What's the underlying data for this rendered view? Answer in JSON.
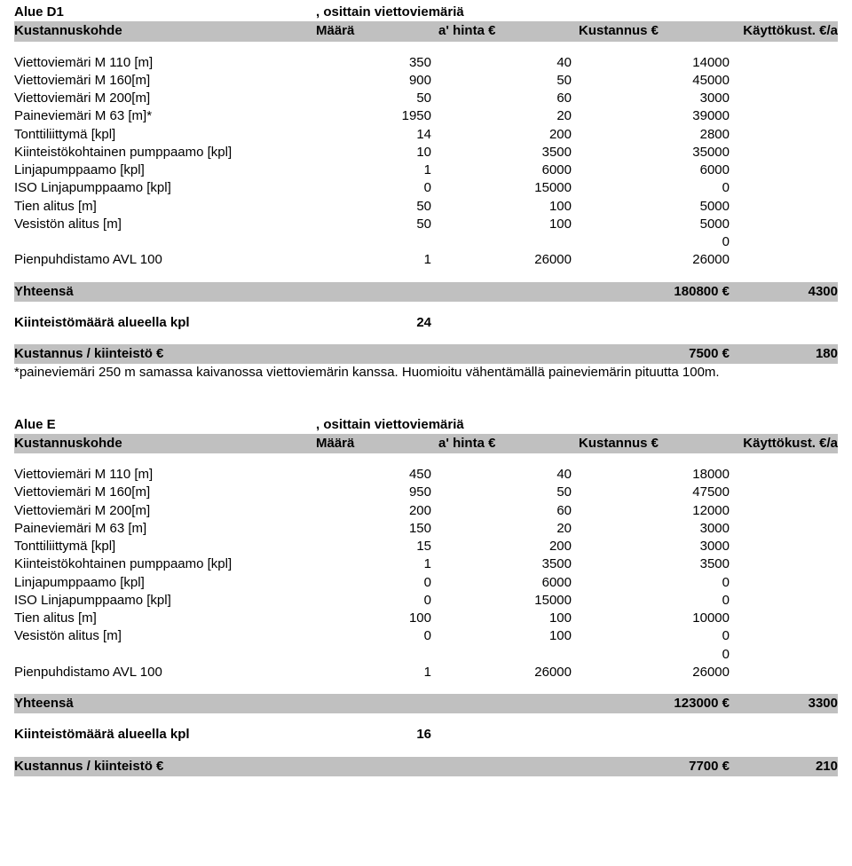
{
  "areaD1": {
    "title_left": "Alue D1",
    "title_right": ", osittain viettoviemäriä",
    "header": {
      "label": "Kustannuskohde",
      "qty": "Määrä",
      "price": "a' hinta €",
      "cost": "Kustannus €",
      "usage": "Käyttökust. €/a"
    },
    "rows": [
      {
        "label": "Viettoviemäri M 110 [m]",
        "q": "350",
        "p": "40",
        "c": "14000"
      },
      {
        "label": "Viettoviemäri M 160[m]",
        "q": "900",
        "p": "50",
        "c": "45000"
      },
      {
        "label": "Viettoviemäri M 200[m]",
        "q": "50",
        "p": "60",
        "c": "3000"
      },
      {
        "label": "Paineviemäri M 63 [m]*",
        "q": "1950",
        "p": "20",
        "c": "39000"
      },
      {
        "label": "Tonttiliittymä [kpl]",
        "q": "14",
        "p": "200",
        "c": "2800"
      },
      {
        "label": "Kiinteistökohtainen pumppaamo [kpl]",
        "q": "10",
        "p": "3500",
        "c": "35000"
      },
      {
        "label": "Linjapumppaamo [kpl]",
        "q": "1",
        "p": "6000",
        "c": "6000"
      },
      {
        "label": "ISO Linjapumppaamo [kpl]",
        "q": "0",
        "p": "15000",
        "c": "0"
      },
      {
        "label": "Tien alitus [m]",
        "q": "50",
        "p": "100",
        "c": "5000"
      },
      {
        "label": "Vesistön alitus [m]",
        "q": "50",
        "p": "100",
        "c": "5000"
      },
      {
        "label": "",
        "q": "",
        "p": "",
        "c": "0"
      },
      {
        "label": "Pienpuhdistamo AVL 100",
        "q": "1",
        "p": "26000",
        "c": "26000"
      }
    ],
    "total": {
      "label": "Yhteensä",
      "cost": "180800 €",
      "usage": "4300"
    },
    "count": {
      "label": "Kiinteistömäärä alueella kpl",
      "value": "24"
    },
    "per": {
      "label": "Kustannus / kiinteistö €",
      "cost": "7500 €",
      "usage": "180"
    },
    "footnote": "*paineviemäri 250 m samassa kaivanossa viettoviemärin kanssa. Huomioitu vähentämällä paineviemärin pituutta 100m."
  },
  "areaE": {
    "title_left": "Alue E",
    "title_right": ", osittain viettoviemäriä",
    "header": {
      "label": "Kustannuskohde",
      "qty": "Määrä",
      "price": "a' hinta €",
      "cost": "Kustannus €",
      "usage": "Käyttökust. €/a"
    },
    "rows": [
      {
        "label": "Viettoviemäri M 110 [m]",
        "q": "450",
        "p": "40",
        "c": "18000"
      },
      {
        "label": "Viettoviemäri M 160[m]",
        "q": "950",
        "p": "50",
        "c": "47500"
      },
      {
        "label": "Viettoviemäri M 200[m]",
        "q": "200",
        "p": "60",
        "c": "12000"
      },
      {
        "label": "Paineviemäri M 63 [m]",
        "q": "150",
        "p": "20",
        "c": "3000"
      },
      {
        "label": "Tonttiliittymä [kpl]",
        "q": "15",
        "p": "200",
        "c": "3000"
      },
      {
        "label": "Kiinteistökohtainen pumppaamo [kpl]",
        "q": "1",
        "p": "3500",
        "c": "3500"
      },
      {
        "label": "Linjapumppaamo [kpl]",
        "q": "0",
        "p": "6000",
        "c": "0"
      },
      {
        "label": "ISO Linjapumppaamo [kpl]",
        "q": "0",
        "p": "15000",
        "c": "0"
      },
      {
        "label": "Tien alitus [m]",
        "q": "100",
        "p": "100",
        "c": "10000"
      },
      {
        "label": "Vesistön alitus [m]",
        "q": "0",
        "p": "100",
        "c": "0"
      },
      {
        "label": "",
        "q": "",
        "p": "",
        "c": "0"
      },
      {
        "label": "Pienpuhdistamo AVL 100",
        "q": "1",
        "p": "26000",
        "c": "26000"
      }
    ],
    "total": {
      "label": "Yhteensä",
      "cost": "123000 €",
      "usage": "3300"
    },
    "count": {
      "label": "Kiinteistömäärä alueella kpl",
      "value": "16"
    },
    "per": {
      "label": "Kustannus / kiinteistö €",
      "cost": "7700 €",
      "usage": "210"
    }
  }
}
